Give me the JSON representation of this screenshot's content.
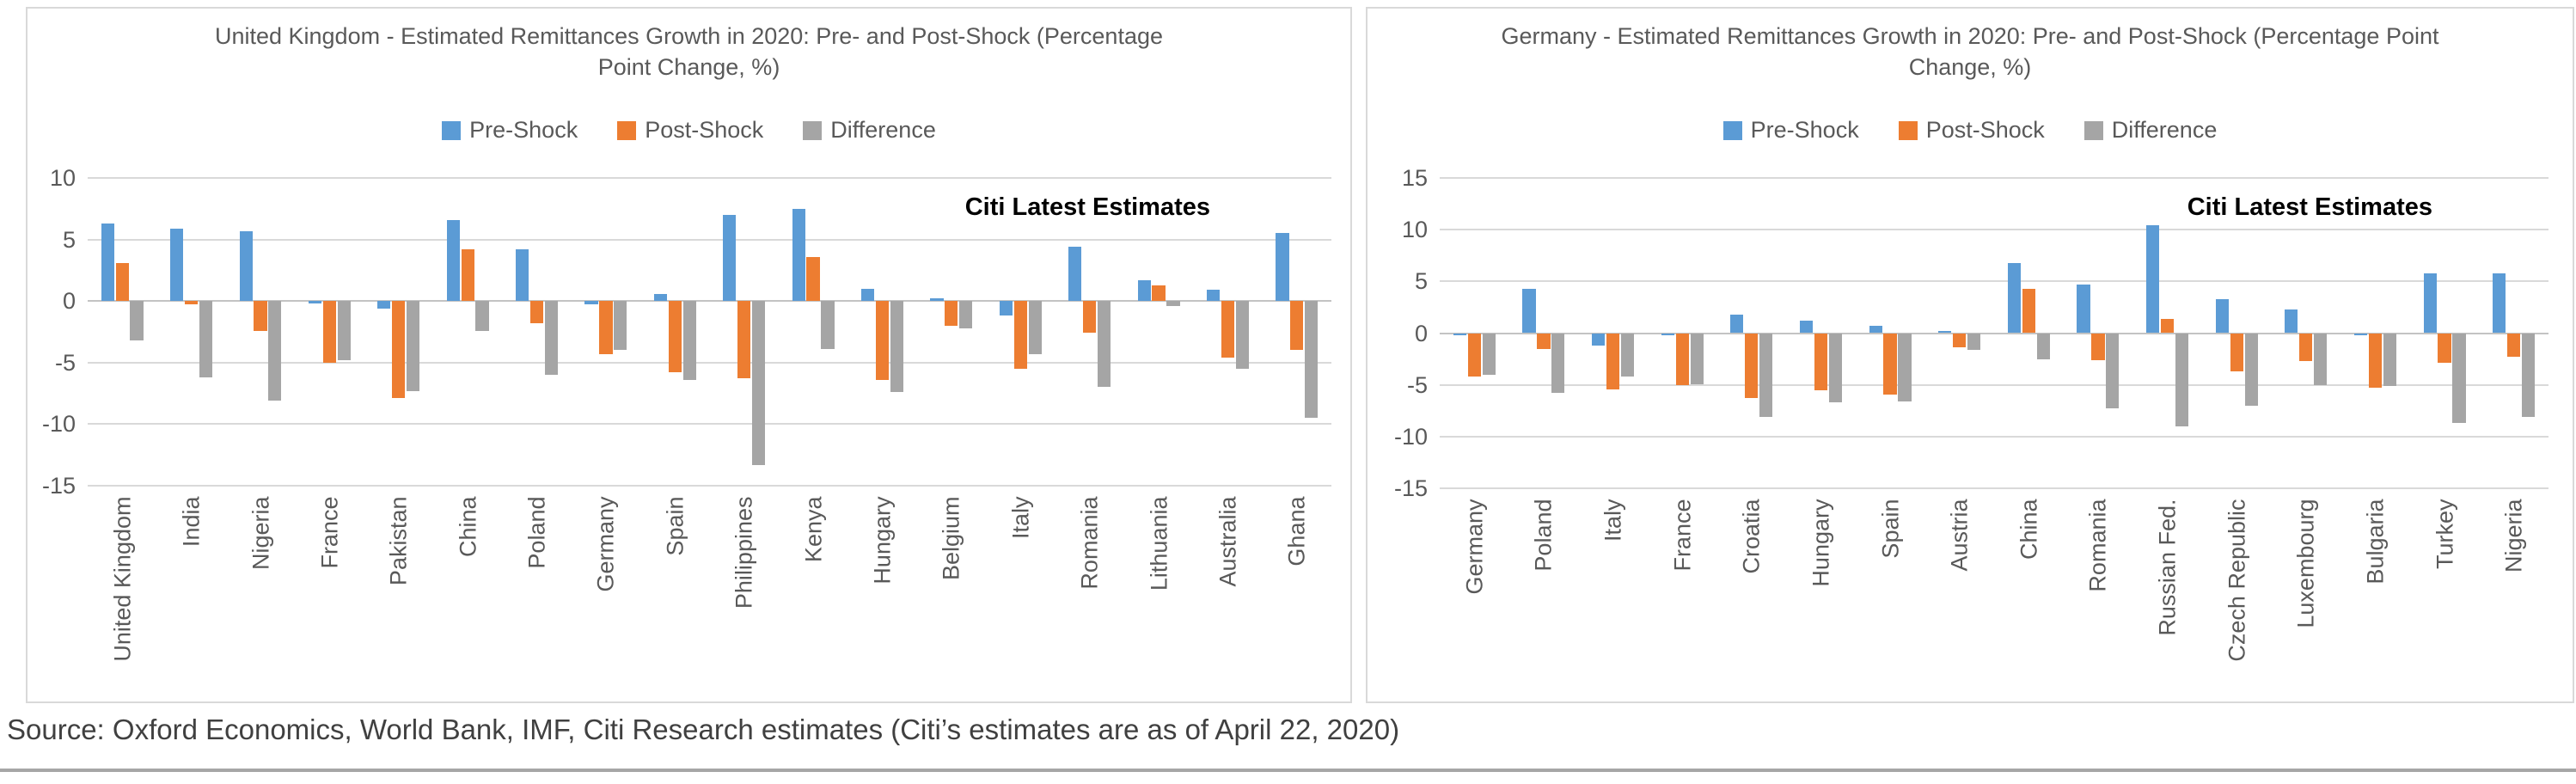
{
  "source_line": "Source: Oxford Economics, World Bank, IMF, Citi Research estimates (Citi’s estimates are as of April 22, 2020)",
  "colors": {
    "pre": "#5B9BD5",
    "post": "#ED7D31",
    "diff": "#A5A5A5"
  },
  "chart_data": [
    {
      "type": "bar",
      "title": "United Kingdom - Estimated Remittances Growth in 2020: Pre- and Post-Shock (Percentage Point Change, %)",
      "annotation": "Citi Latest Estimates",
      "legend_position": "top",
      "grid": true,
      "ylim": [
        -15,
        10
      ],
      "yticks": [
        10,
        5,
        0,
        -5,
        -10,
        -15
      ],
      "categories": [
        "United Kingdom",
        "India",
        "Nigeria",
        "France",
        "Pakistan",
        "China",
        "Poland",
        "Germany",
        "Spain",
        "Philippines",
        "Kenya",
        "Hungary",
        "Belgium",
        "Italy",
        "Romania",
        "Lithuania",
        "Australia",
        "Ghana"
      ],
      "series": [
        {
          "name": "Pre-Shock",
          "color_key": "pre",
          "values": [
            6.3,
            5.9,
            5.7,
            -0.2,
            -0.6,
            6.6,
            4.2,
            -0.3,
            0.6,
            7.0,
            7.5,
            1.0,
            0.2,
            -1.2,
            4.4,
            1.7,
            0.9,
            5.5
          ]
        },
        {
          "name": "Post-Shock",
          "color_key": "post",
          "values": [
            3.1,
            -0.3,
            -2.4,
            -5.0,
            -7.9,
            4.2,
            -1.8,
            -4.3,
            -5.8,
            -6.3,
            3.6,
            -6.4,
            -2.0,
            -5.5,
            -2.6,
            1.3,
            -4.6,
            -4.0
          ]
        },
        {
          "name": "Difference",
          "color_key": "diff",
          "values": [
            -3.2,
            -6.2,
            -8.1,
            -4.8,
            -7.3,
            -2.4,
            -6.0,
            -4.0,
            -6.4,
            -13.3,
            -3.9,
            -7.4,
            -2.2,
            -4.3,
            -7.0,
            -0.4,
            -5.5,
            -9.5
          ]
        }
      ]
    },
    {
      "type": "bar",
      "title": "Germany - Estimated Remittances Growth in 2020: Pre- and Post-Shock (Percentage Point Change, %)",
      "annotation": "Citi Latest Estimates",
      "legend_position": "top",
      "grid": true,
      "ylim": [
        -15,
        15
      ],
      "yticks": [
        15,
        10,
        5,
        0,
        -5,
        -10,
        -15
      ],
      "categories": [
        "Germany",
        "Poland",
        "Italy",
        "France",
        "Croatia",
        "Hungary",
        "Spain",
        "Austria",
        "China",
        "Romania",
        "Russian Fed.",
        "Czech Republic",
        "Luxembourg",
        "Bulgaria",
        "Turkey",
        "Nigeria"
      ],
      "series": [
        {
          "name": "Pre-Shock",
          "color_key": "pre",
          "values": [
            -0.2,
            4.3,
            -1.2,
            -0.1,
            1.8,
            1.2,
            0.7,
            0.2,
            6.8,
            4.7,
            10.4,
            3.3,
            2.3,
            -0.2,
            5.8,
            5.8
          ]
        },
        {
          "name": "Post-Shock",
          "color_key": "post",
          "values": [
            -4.2,
            -1.5,
            -5.4,
            -5.0,
            -6.3,
            -5.5,
            -5.9,
            -1.4,
            4.3,
            -2.6,
            1.4,
            -3.7,
            -2.7,
            -5.3,
            -2.9,
            -2.3
          ]
        },
        {
          "name": "Difference",
          "color_key": "diff",
          "values": [
            -4.0,
            -5.8,
            -4.2,
            -4.9,
            -8.1,
            -6.7,
            -6.6,
            -1.6,
            -2.5,
            -7.3,
            -9.0,
            -7.0,
            -5.0,
            -5.1,
            -8.7,
            -8.1
          ]
        }
      ]
    }
  ]
}
